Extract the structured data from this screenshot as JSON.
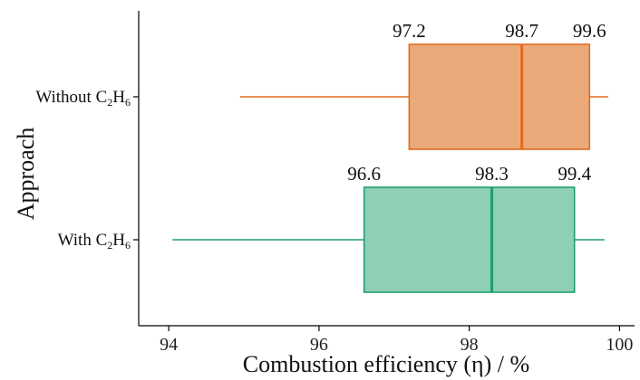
{
  "chart_data": {
    "type": "boxplot",
    "orientation": "horizontal",
    "xlabel": "Combustion efficiency (η) / %",
    "ylabel": "Approach",
    "xlim": [
      93.6,
      100.2
    ],
    "xticks": [
      94,
      96,
      98,
      100
    ],
    "grid": false,
    "categories": [
      {
        "label": "Without C₂H₆",
        "label_base": "Without C",
        "sub1": "2",
        "mid": "H",
        "sub2": "6"
      },
      {
        "label": "With C₂H₆",
        "label_base": "With C",
        "sub1": "2",
        "mid": "H",
        "sub2": "6"
      }
    ],
    "series": [
      {
        "category": "Without C₂H₆",
        "min": 94.95,
        "q1": 97.2,
        "median": 98.7,
        "q3": 99.6,
        "max": 99.85,
        "labels": {
          "q1": "97.2",
          "median": "98.7",
          "q3": "99.6"
        },
        "fill": "#eba97a",
        "stroke": "#e06c1d"
      },
      {
        "category": "With C₂H₆",
        "min": 94.05,
        "q1": 96.6,
        "median": 98.3,
        "q3": 99.4,
        "max": 99.8,
        "labels": {
          "q1": "96.6",
          "median": "98.3",
          "q3": "99.4"
        },
        "fill": "#8ecfb6",
        "stroke": "#1f9e6e"
      }
    ]
  }
}
